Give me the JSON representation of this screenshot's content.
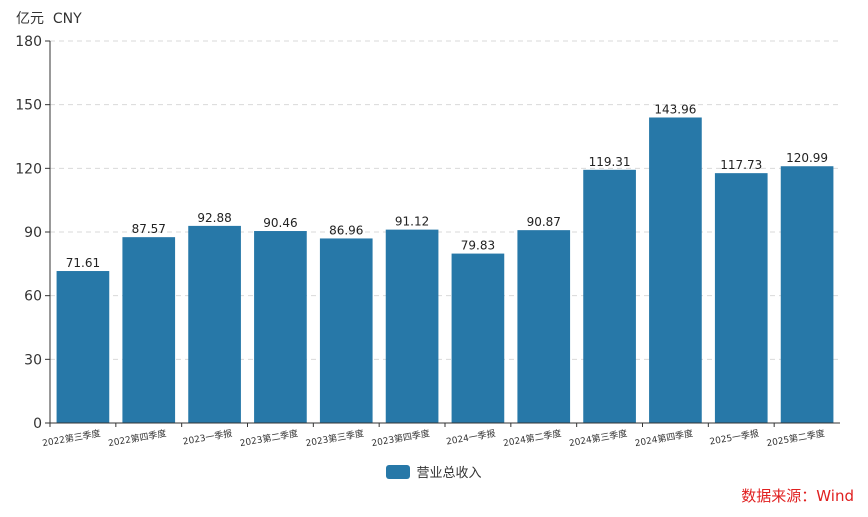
{
  "chart_data": {
    "type": "bar",
    "unit_label": "亿元  CNY",
    "categories": [
      "2022第三季度",
      "2022第四季度",
      "2023一季报",
      "2023第二季度",
      "2023第三季度",
      "2023第四季度",
      "2024一季报",
      "2024第二季度",
      "2024第三季度",
      "2024第四季度",
      "2025一季报",
      "2025第二季度"
    ],
    "series": [
      {
        "name": "营业总收入",
        "color": "#2778a8",
        "values": [
          71.61,
          87.57,
          92.88,
          90.46,
          86.96,
          91.12,
          79.83,
          90.87,
          119.31,
          143.96,
          117.73,
          120.99
        ]
      }
    ],
    "ylim": [
      0,
      180
    ],
    "yticks": [
      0,
      30,
      60,
      90,
      120,
      150,
      180
    ],
    "grid": true,
    "legend_position": "bottom-center",
    "source": "数据来源：Wind"
  }
}
